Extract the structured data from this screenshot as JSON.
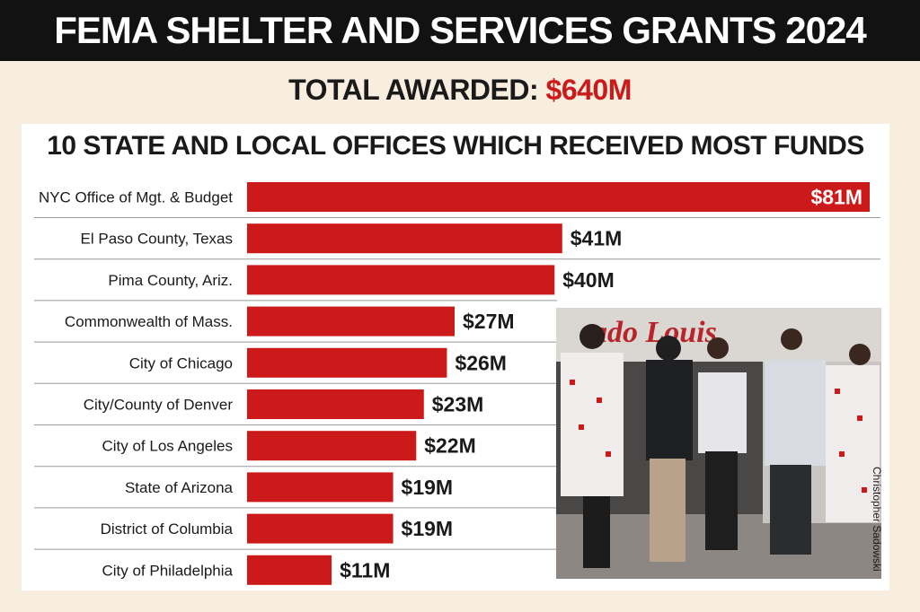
{
  "header": {
    "title": "FEMA SHELTER AND SERVICES GRANTS 2024"
  },
  "total": {
    "label": "TOTAL AWARDED:",
    "amount": "$640M"
  },
  "photo": {
    "description_icon": "people-with-blankets-photo",
    "sign_text": "ado Louis",
    "credit": "Christopher Sadowski"
  },
  "colors": {
    "bar": "#cc1a1a",
    "header_bg": "#121212",
    "page_bg": "#f8eee0"
  },
  "chart_data": {
    "type": "bar",
    "orientation": "horizontal",
    "title": "10 STATE AND LOCAL OFFICES WHICH RECEIVED MOST FUNDS",
    "categories": [
      "NYC Office of Mgt. & Budget",
      "El Paso County, Texas",
      "Pima County, Ariz.",
      "Commonwealth of Mass.",
      "City of Chicago",
      "City/County of Denver",
      "City of Los Angeles",
      "State of Arizona",
      "District of Columbia",
      "City of Philadelphia"
    ],
    "values": [
      81,
      41,
      40,
      27,
      26,
      23,
      22,
      19,
      19,
      11
    ],
    "value_labels": [
      "$81M",
      "$41M",
      "$40M",
      "$27M",
      "$26M",
      "$23M",
      "$22M",
      "$19M",
      "$19M",
      "$11M"
    ],
    "unit": "millions USD",
    "xlim": [
      0,
      81
    ],
    "grid": false,
    "legend": "none"
  }
}
